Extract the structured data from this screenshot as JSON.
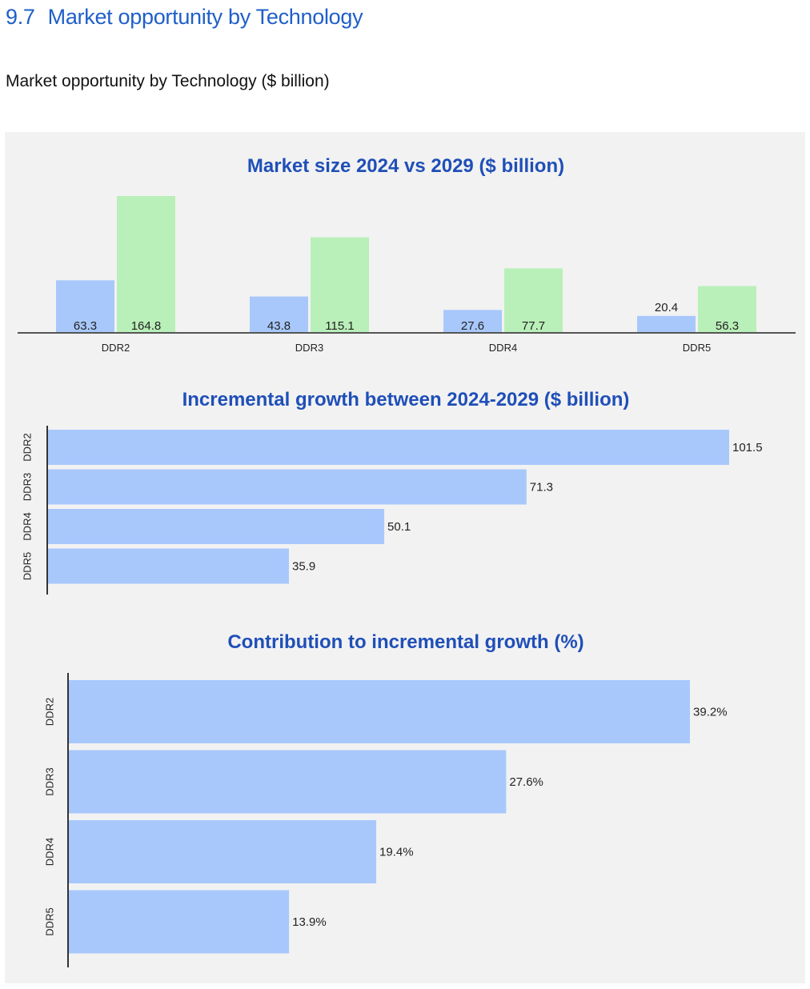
{
  "heading": {
    "number": "9.7",
    "title": "Market opportunity by Technology"
  },
  "subtitle": "Market opportunity by Technology ($ billion)",
  "colors": {
    "series_2024": "#a8c8fc",
    "series_2029": "#b9efb8",
    "title": "#1f4fb8",
    "heading": "#1f5fc8"
  },
  "chart_data": [
    {
      "type": "bar",
      "title": "Market size 2024 vs 2029 ($ billion)",
      "categories": [
        "DDR2",
        "DDR3",
        "DDR4",
        "DDR5"
      ],
      "series": [
        {
          "name": "2024",
          "values": [
            63.3,
            43.8,
            27.6,
            20.4
          ]
        },
        {
          "name": "2029",
          "values": [
            164.8,
            115.1,
            77.7,
            56.3
          ]
        }
      ],
      "value_labels": {
        "2024": [
          "63.3",
          "43.8",
          "27.6",
          "20.4"
        ],
        "2029": [
          "164.8",
          "115.1",
          "77.7",
          "56.3"
        ]
      },
      "xlabel": "",
      "ylabel": "",
      "ylim": [
        0,
        170
      ]
    },
    {
      "type": "bar",
      "orientation": "horizontal",
      "title": "Incremental growth between 2024-2029 ($ billion)",
      "categories": [
        "DDR2",
        "DDR3",
        "DDR4",
        "DDR5"
      ],
      "values": [
        101.5,
        71.3,
        50.1,
        35.9
      ],
      "value_labels": [
        "101.5",
        "71.3",
        "50.1",
        "35.9"
      ],
      "xlim": [
        0,
        101.5
      ]
    },
    {
      "type": "bar",
      "orientation": "horizontal",
      "title": "Contribution to incremental growth (%)",
      "categories": [
        "DDR2",
        "DDR3",
        "DDR4",
        "DDR5"
      ],
      "values": [
        39.2,
        27.6,
        19.4,
        13.9
      ],
      "value_labels": [
        "39.2%",
        "27.6%",
        "19.4%",
        "13.9%"
      ],
      "xlim": [
        0,
        39.2
      ]
    }
  ]
}
